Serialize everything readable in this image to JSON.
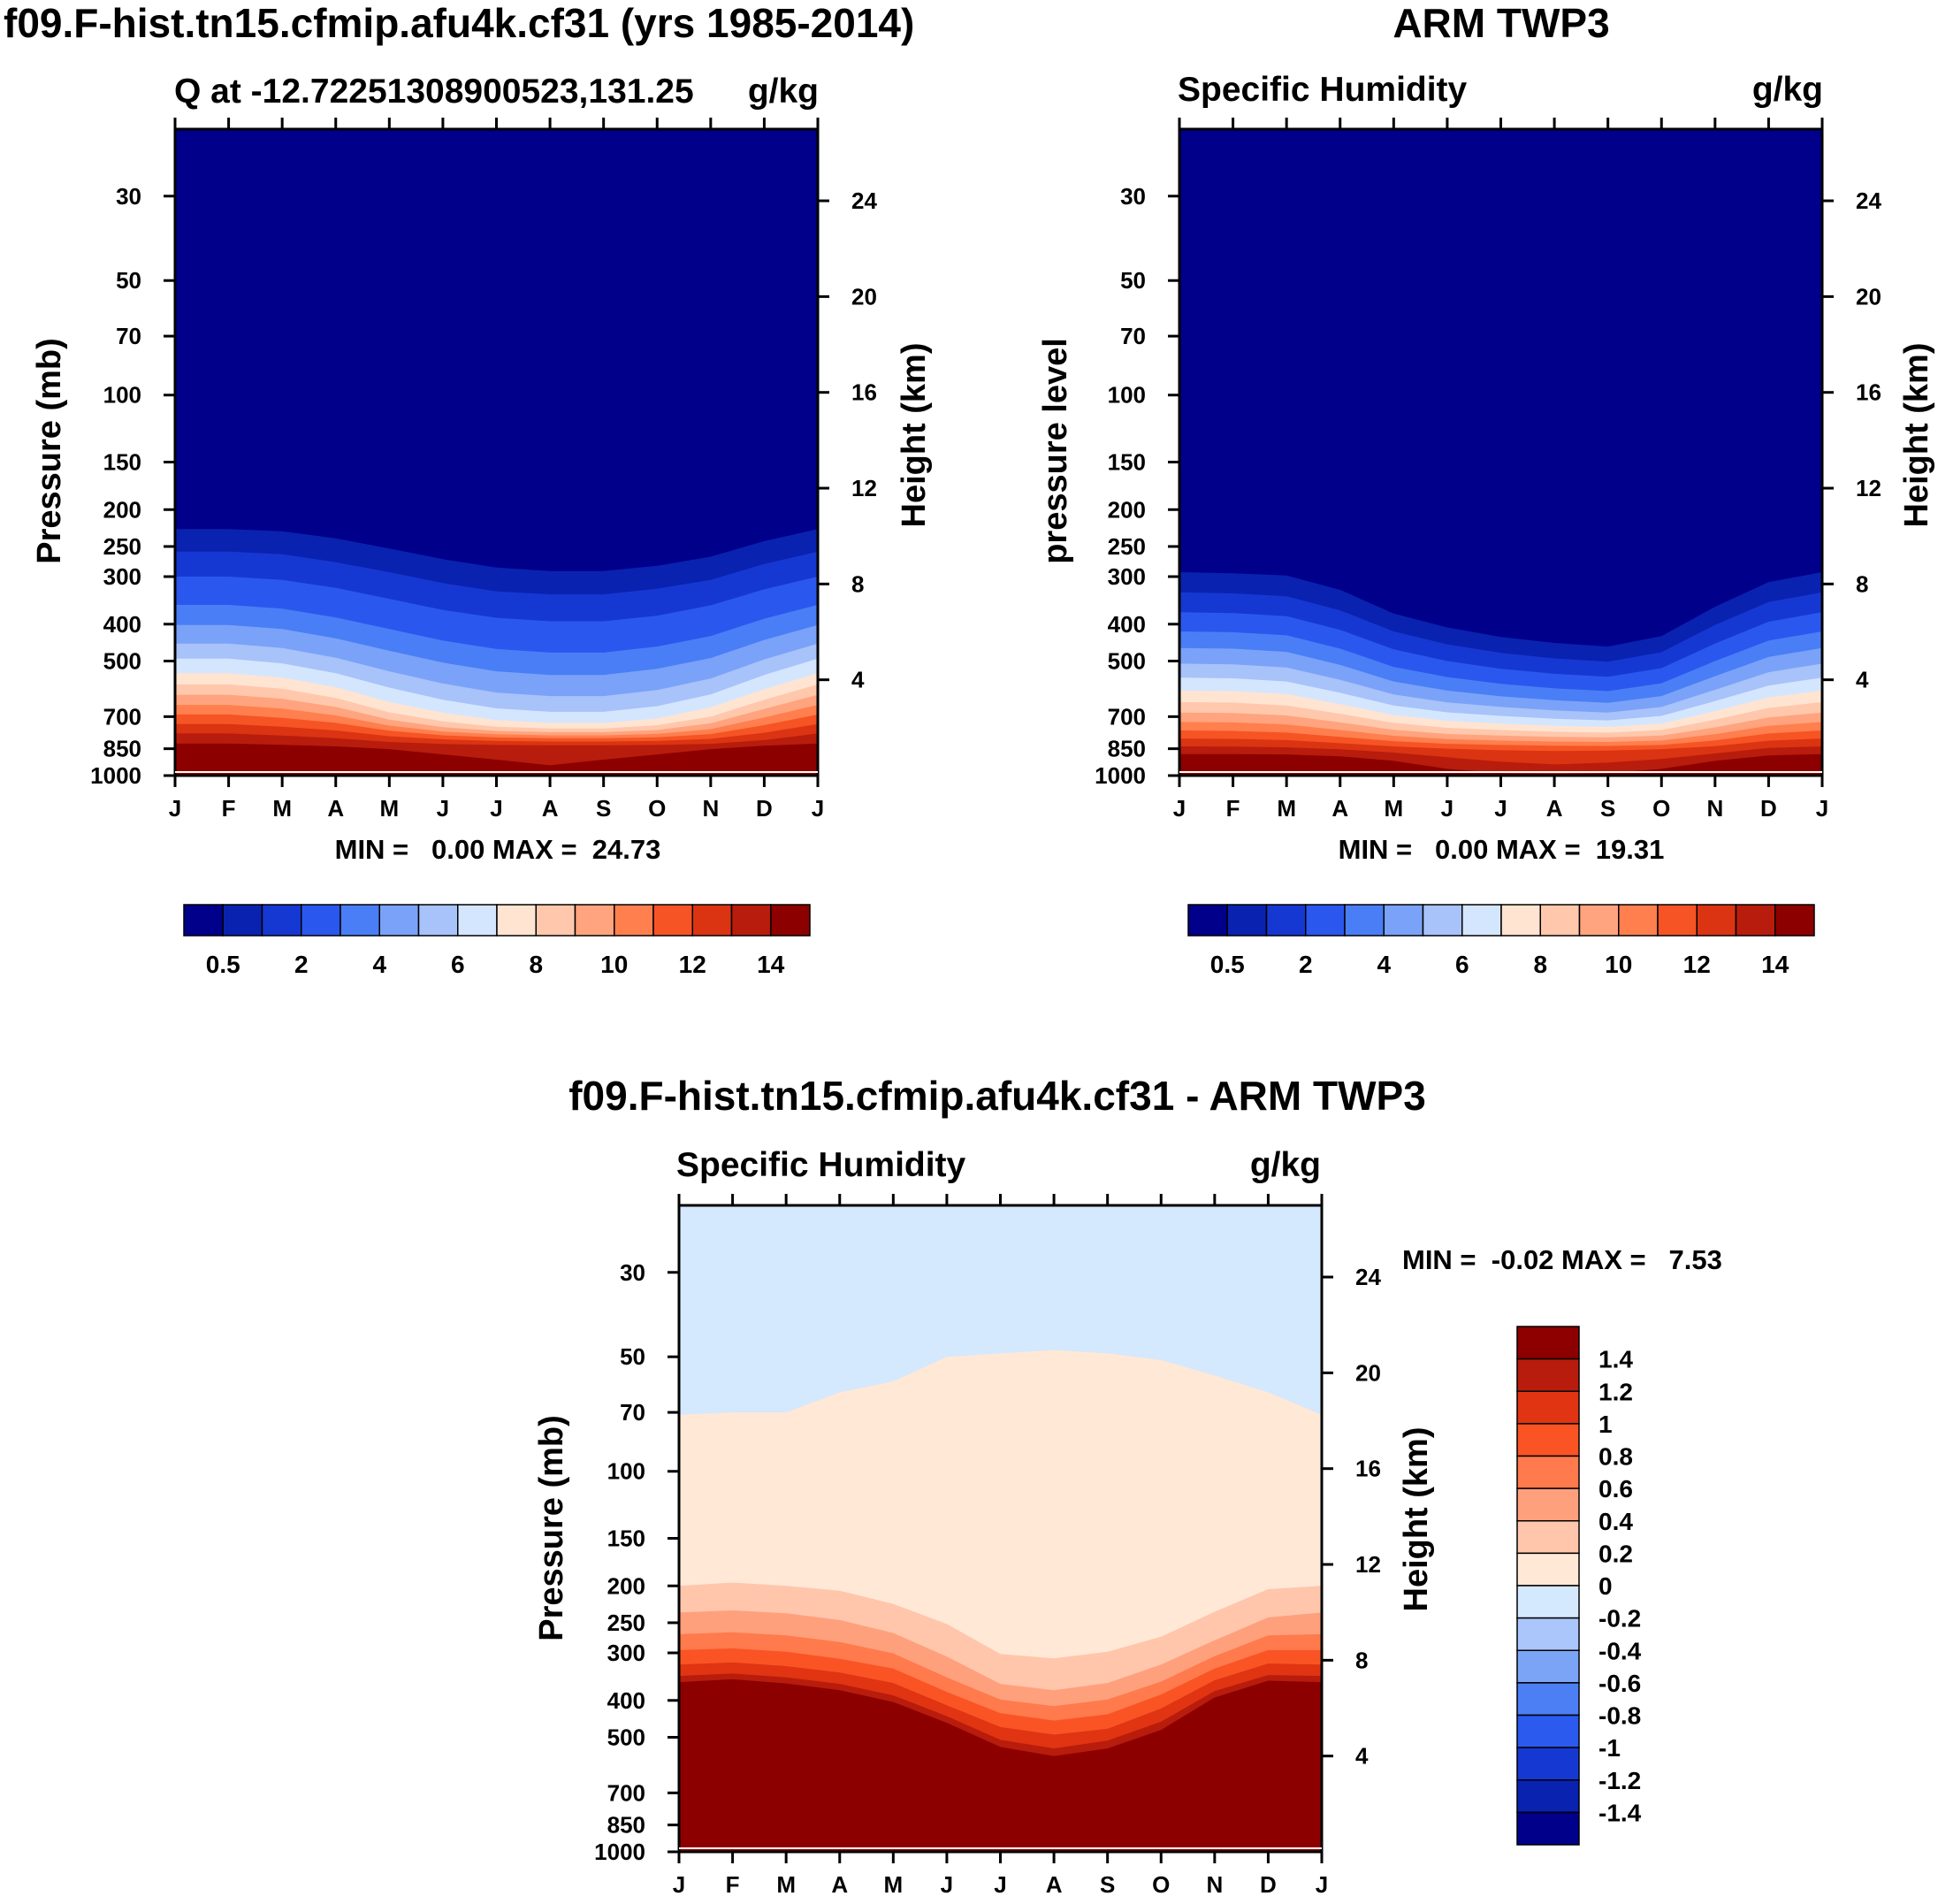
{
  "chart_data": [
    {
      "type": "contour",
      "title": "f09.F-hist.tn15.cfmip.afu4k.cf31 (yrs 1985-2014)",
      "left_subtitle": "Q at -12.72251308900523,131.25",
      "right_subtitle": "g/kg",
      "ylabel": "Pressure (mb)",
      "y2label": "Height (km)",
      "minmax": "MIN =   0.00 MAX =  24.73",
      "x_ticks": [
        "J",
        "F",
        "M",
        "A",
        "M",
        "J",
        "J",
        "A",
        "S",
        "O",
        "N",
        "D",
        "J"
      ],
      "y_ticks": [
        30,
        50,
        70,
        100,
        150,
        200,
        250,
        300,
        400,
        500,
        700,
        850,
        1000
      ],
      "y_range": [
        20,
        1000
      ],
      "y2_ticks": [
        24,
        20,
        16,
        12,
        8,
        4
      ],
      "colorbar_labels": [
        "0.5",
        "2",
        "4",
        "6",
        "8",
        "10",
        "12",
        "14"
      ],
      "contour_levels": [
        0.5,
        1,
        2,
        3,
        4,
        5,
        6,
        7,
        8,
        9,
        10,
        11,
        12,
        13,
        14
      ],
      "level_pressure_by_month": [
        [
          225,
          225,
          228,
          238,
          253,
          270,
          284,
          290,
          290,
          281,
          266,
          242,
          225
        ],
        [
          258,
          258,
          262,
          275,
          292,
          312,
          328,
          334,
          334,
          323,
          306,
          278,
          258
        ],
        [
          300,
          300,
          306,
          321,
          343,
          367,
          385,
          393,
          393,
          380,
          357,
          324,
          300
        ],
        [
          356,
          356,
          364,
          384,
          412,
          442,
          465,
          475,
          475,
          458,
          430,
          387,
          356
        ],
        [
          402,
          402,
          412,
          436,
          470,
          505,
          532,
          544,
          544,
          524,
          491,
          440,
          402
        ],
        [
          450,
          450,
          462,
          490,
          532,
          573,
          605,
          618,
          618,
          596,
          556,
          495,
          450
        ],
        [
          493,
          493,
          507,
          538,
          587,
          632,
          666,
          680,
          680,
          657,
          612,
          544,
          493
        ],
        [
          538,
          538,
          553,
          586,
          641,
          684,
          715,
          727,
          727,
          708,
          662,
          593,
          538
        ],
        [
          576,
          576,
          591,
          625,
          682,
          720,
          744,
          752,
          752,
          737,
          700,
          632,
          576
        ],
        [
          613,
          613,
          628,
          660,
          713,
          746,
          763,
          769,
          769,
          759,
          729,
          668,
          613
        ],
        [
          652,
          652,
          667,
          695,
          739,
          766,
          779,
          784,
          784,
          777,
          755,
          703,
          652
        ],
        [
          691,
          691,
          705,
          727,
          762,
          784,
          794,
          798,
          798,
          793,
          778,
          737,
          691
        ],
        [
          732,
          732,
          744,
          761,
          788,
          803,
          811,
          814,
          814,
          811,
          801,
          772,
          732
        ],
        [
          775,
          775,
          785,
          798,
          816,
          826,
          831,
          833,
          833,
          831,
          825,
          807,
          775
        ],
        [
          824,
          824,
          830,
          838,
          852,
          880,
          908,
          940,
          908,
          880,
          852,
          835,
          824
        ]
      ]
    },
    {
      "type": "contour",
      "title": "ARM TWP3",
      "left_subtitle": "Specific Humidity",
      "right_subtitle": "g/kg",
      "ylabel": "pressure level",
      "y2label": "Height (km)",
      "minmax": "MIN =   0.00 MAX =  19.31",
      "x_ticks": [
        "J",
        "F",
        "M",
        "A",
        "M",
        "J",
        "J",
        "A",
        "S",
        "O",
        "N",
        "D",
        "J"
      ],
      "y_ticks": [
        30,
        50,
        70,
        100,
        150,
        200,
        250,
        300,
        400,
        500,
        700,
        850,
        1000
      ],
      "y_range": [
        20,
        1000
      ],
      "y2_ticks": [
        24,
        20,
        16,
        12,
        8,
        4
      ],
      "colorbar_labels": [
        "0.5",
        "2",
        "4",
        "6",
        "8",
        "10",
        "12",
        "14"
      ],
      "contour_levels": [
        0.5,
        1,
        2,
        3,
        4,
        5,
        6,
        7,
        8,
        9,
        10,
        11,
        12,
        13,
        14
      ],
      "level_pressure_by_month": [
        [
          292,
          294,
          298,
          325,
          375,
          408,
          432,
          448,
          458,
          430,
          360,
          310,
          292
        ],
        [
          330,
          332,
          338,
          368,
          418,
          452,
          476,
          492,
          502,
          474,
          402,
          350,
          330
        ],
        [
          372,
          374,
          381,
          414,
          466,
          500,
          524,
          540,
          550,
          522,
          450,
          394,
          372
        ],
        [
          418,
          420,
          428,
          464,
          518,
          551,
          574,
          590,
          600,
          572,
          500,
          442,
          418
        ],
        [
          462,
          464,
          473,
          512,
          566,
          598,
          619,
          634,
          644,
          618,
          548,
          488,
          462
        ],
        [
          508,
          510,
          520,
          560,
          612,
          642,
          660,
          674,
          683,
          660,
          595,
          535,
          508
        ],
        [
          553,
          555,
          566,
          606,
          654,
          682,
          697,
          709,
          716,
          697,
          637,
          580,
          553
        ],
        [
          598,
          600,
          611,
          649,
          693,
          718,
          730,
          740,
          745,
          730,
          677,
          623,
          598
        ],
        [
          641,
          643,
          654,
          688,
          727,
          749,
          759,
          767,
          771,
          759,
          713,
          664,
          641
        ],
        [
          683,
          685,
          695,
          725,
          758,
          777,
          785,
          791,
          794,
          785,
          747,
          703,
          683
        ],
        [
          723,
          725,
          734,
          759,
          786,
          802,
          809,
          814,
          816,
          809,
          778,
          740,
          723
        ],
        [
          761,
          763,
          771,
          791,
          812,
          825,
          831,
          835,
          836,
          831,
          808,
          775,
          761
        ],
        [
          799,
          801,
          807,
          822,
          838,
          850,
          858,
          862,
          860,
          852,
          837,
          810,
          799
        ],
        [
          838,
          839,
          843,
          853,
          870,
          895,
          920,
          935,
          925,
          905,
          875,
          846,
          838
        ],
        [
          878,
          878,
          880,
          890,
          915,
          960,
          985,
          990,
          985,
          960,
          915,
          885,
          878
        ]
      ]
    },
    {
      "type": "contour",
      "title": "f09.F-hist.tn15.cfmip.afu4k.cf31 - ARM TWP3",
      "left_subtitle": "Specific Humidity",
      "right_subtitle": "g/kg",
      "ylabel": "Pressure (mb)",
      "y2label": "Height (km)",
      "minmax": "MIN =  -0.02 MAX =   7.53",
      "x_ticks": [
        "J",
        "F",
        "M",
        "A",
        "M",
        "J",
        "J",
        "A",
        "S",
        "O",
        "N",
        "D",
        "J"
      ],
      "y_ticks": [
        30,
        50,
        70,
        100,
        150,
        200,
        250,
        300,
        400,
        500,
        700,
        850,
        1000
      ],
      "y_range": [
        20,
        1000
      ],
      "y2_ticks": [
        24,
        20,
        16,
        12,
        8,
        4
      ],
      "colorbar_labels": [
        "1.4",
        "1.2",
        "1",
        "0.8",
        "0.6",
        "0.4",
        "0.2",
        "0",
        "-0.2",
        "-0.4",
        "-0.6",
        "-0.8",
        "-1",
        "-1.2",
        "-1.4"
      ],
      "contour_levels": [
        0,
        0.2,
        0.4,
        0.6,
        0.8,
        1.0,
        1.2,
        1.4
      ],
      "level_pressure_by_month": [
        [
          71,
          70,
          70,
          62,
          58,
          50,
          49,
          48,
          49,
          51,
          56,
          62,
          71
        ],
        [
          200,
          196,
          200,
          206,
          223,
          252,
          302,
          310,
          298,
          272,
          234,
          204,
          200
        ],
        [
          235,
          232,
          236,
          246,
          266,
          307,
          362,
          376,
          360,
          322,
          278,
          242,
          235
        ],
        [
          268,
          265,
          270,
          281,
          301,
          348,
          398,
          414,
          398,
          357,
          306,
          270,
          268
        ],
        [
          295,
          292,
          298,
          311,
          330,
          380,
          432,
          452,
          435,
          386,
          330,
          295,
          295
        ],
        [
          322,
          318,
          325,
          338,
          360,
          412,
          470,
          492,
          475,
          420,
          354,
          320,
          322
        ],
        [
          345,
          340,
          348,
          362,
          388,
          440,
          508,
          535,
          510,
          455,
          378,
          343,
          345
        ],
        [
          358,
          352,
          361,
          376,
          404,
          458,
          530,
          560,
          535,
          478,
          393,
          355,
          358
        ]
      ],
      "bands_from_top": [
        "-0.2",
        "0",
        "0.2",
        "0.4",
        "0.6",
        "0.8",
        "1",
        "1.2",
        "1.4"
      ]
    }
  ]
}
